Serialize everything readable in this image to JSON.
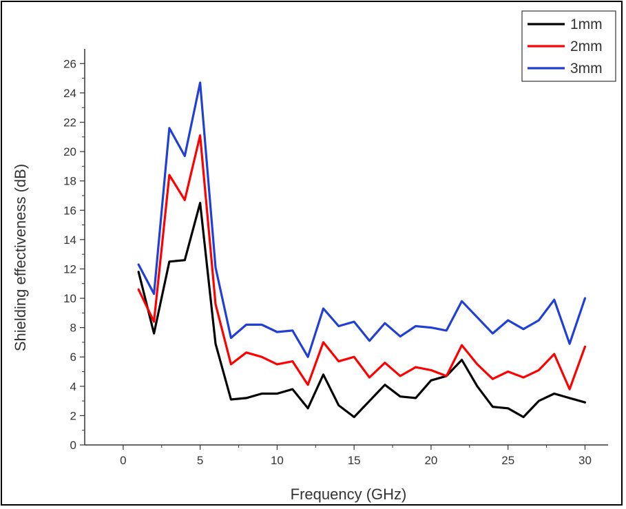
{
  "chart_data": {
    "type": "line",
    "xlabel": "Frequency (GHz)",
    "ylabel": "Shielding effectiveness (dB)",
    "xlim": [
      -2.5,
      31.5
    ],
    "ylim": [
      0,
      27
    ],
    "x_ticks": [
      0,
      5,
      10,
      15,
      20,
      25,
      30
    ],
    "y_ticks": [
      0,
      2,
      4,
      6,
      8,
      10,
      12,
      14,
      16,
      18,
      20,
      22,
      24,
      26
    ],
    "grid": false,
    "legend_position": "top-right",
    "x": [
      1,
      2,
      3,
      4,
      5,
      6,
      7,
      8,
      9,
      10,
      11,
      12,
      13,
      14,
      15,
      16,
      17,
      18,
      19,
      20,
      21,
      22,
      23,
      24,
      25,
      26,
      27,
      28,
      29,
      30
    ],
    "series": [
      {
        "name": "1mm",
        "color": "#000000",
        "values": [
          11.8,
          7.6,
          12.5,
          12.6,
          16.5,
          6.9,
          3.1,
          3.2,
          3.5,
          3.5,
          3.8,
          2.5,
          4.8,
          2.7,
          1.9,
          3.0,
          4.1,
          3.3,
          3.2,
          4.4,
          4.7,
          5.8,
          4.0,
          2.6,
          2.5,
          1.9,
          3.0,
          3.5,
          3.2,
          2.9
        ]
      },
      {
        "name": "2mm",
        "color": "#ff0000",
        "values": [
          10.6,
          8.4,
          18.4,
          16.7,
          21.1,
          9.6,
          5.5,
          6.3,
          6.0,
          5.5,
          5.7,
          4.1,
          7.0,
          5.7,
          6.0,
          4.6,
          5.6,
          4.7,
          5.3,
          5.1,
          4.7,
          6.8,
          5.5,
          4.5,
          5.0,
          4.6,
          5.1,
          6.2,
          3.8,
          6.7
        ]
      },
      {
        "name": "3mm",
        "color": "#1f3fd6",
        "values": [
          12.3,
          10.3,
          21.6,
          19.7,
          24.7,
          12.1,
          7.3,
          8.2,
          8.2,
          7.7,
          7.8,
          6.0,
          9.3,
          8.1,
          8.4,
          7.1,
          8.3,
          7.4,
          8.1,
          8.0,
          7.8,
          9.8,
          8.7,
          7.6,
          8.5,
          7.9,
          8.5,
          9.9,
          6.9,
          10.0
        ]
      }
    ]
  }
}
